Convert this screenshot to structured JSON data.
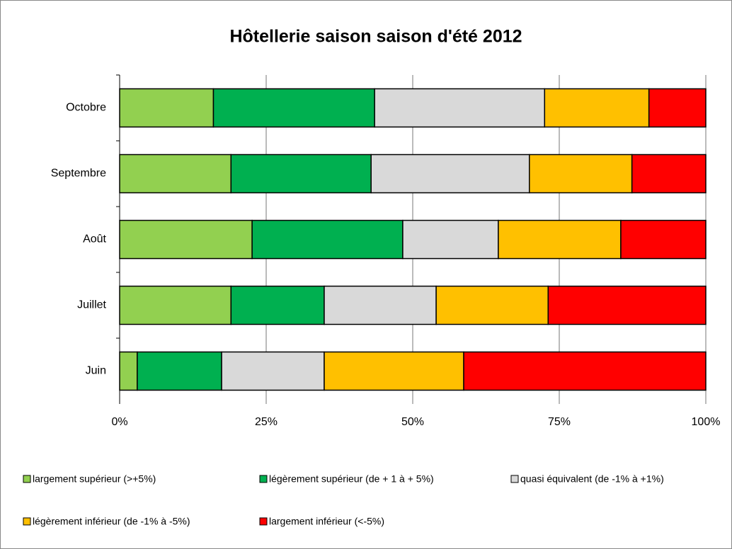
{
  "chart_data": {
    "type": "stacked_bar_horizontal",
    "title": "Hôtellerie saison saison d'été 2012",
    "categories": [
      "Octobre",
      "Septembre",
      "Août",
      "Juillet",
      "Juin"
    ],
    "series": [
      {
        "name": "largement supérieur (>+5%)",
        "color": "#92d050",
        "values": [
          16,
          19,
          22.6,
          19,
          3
        ]
      },
      {
        "name": "légèrement supérieur (de + 1 à + 5%)",
        "color": "#00b050",
        "values": [
          27.5,
          23.9,
          25.7,
          15.9,
          14.4
        ]
      },
      {
        "name": "quasi équivalent (de  -1% à +1%)",
        "color": "#d9d9d9",
        "values": [
          29,
          27,
          16.3,
          19.1,
          17.5
        ]
      },
      {
        "name": "légèrement inférieur (de -1% à -5%)",
        "color": "#ffc000",
        "values": [
          17.8,
          17.5,
          20.9,
          19.1,
          23.8
        ]
      },
      {
        "name": "largement inférieur (<-5%)",
        "color": "#ff0000",
        "values": [
          9.7,
          12.6,
          14.5,
          26.9,
          41.3
        ]
      }
    ],
    "xlim": [
      0,
      100
    ],
    "xticks": [
      {
        "value": 0,
        "label": "0%"
      },
      {
        "value": 25,
        "label": "25%"
      },
      {
        "value": 50,
        "label": "50%"
      },
      {
        "value": 75,
        "label": "75%"
      },
      {
        "value": 100,
        "label": "100%"
      }
    ],
    "grid": true,
    "legend": "bottom"
  }
}
